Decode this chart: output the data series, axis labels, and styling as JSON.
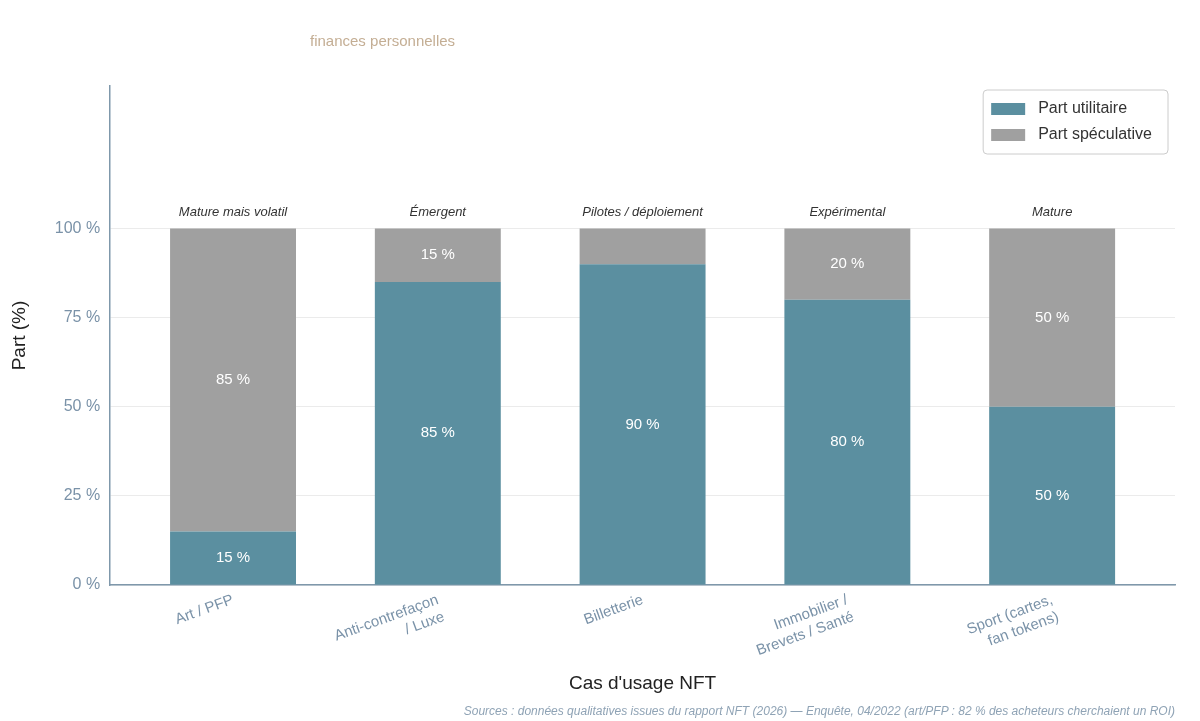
{
  "chart_data": {
    "type": "bar",
    "subtitle": "finances personnelles",
    "xlabel": "Cas d'usage NFT",
    "ylabel": "Part (%)",
    "categories": [
      "Art / PFP",
      "Anti-contrefaçon\n/ Luxe",
      "Billetterie",
      "Immobilier /\nBrevets / Santé",
      "Sport (cartes,\nfan tokens)"
    ],
    "series": [
      {
        "name": "Part utilitaire",
        "color": "#5b8fa0",
        "values": [
          15,
          85,
          90,
          80,
          50
        ],
        "value_labels": [
          "15 %",
          "85 %",
          "90 %",
          "80 %",
          "50 %"
        ]
      },
      {
        "name": "Part spéculative",
        "color": "#a0a0a0",
        "values": [
          85,
          15,
          10,
          20,
          50
        ],
        "value_labels": [
          "85 %",
          "15 %",
          null,
          "20 %",
          "50 %"
        ]
      }
    ],
    "stacked": true,
    "ylim": [
      0,
      140
    ],
    "yticks": [
      {
        "value": 0,
        "label": "0 %"
      },
      {
        "value": 25,
        "label": "25 %"
      },
      {
        "value": 50,
        "label": "50 %"
      },
      {
        "value": 75,
        "label": "75 %"
      },
      {
        "value": 100,
        "label": "100 %"
      }
    ],
    "grid": "y",
    "legend": "top right",
    "annotations": [
      {
        "text": "Mature mais volatil",
        "x": "Art / PFP",
        "y": 100
      },
      {
        "text": "Émergent",
        "x": "Anti-contrefaçon\n/ Luxe",
        "y": 100
      },
      {
        "text": "Pilotes / déploiement",
        "x": "Billetterie",
        "y": 100
      },
      {
        "text": "Expérimental",
        "x": "Immobilier /\nBrevets / Santé",
        "y": 100
      },
      {
        "text": "Mature",
        "x": "Sport (cartes,\nfan tokens)",
        "y": 100
      },
      "Sources : données qualitatives issues du rapport NFT (2026) — Enquête, 04/2022 (art/PFP : 82 % des acheteurs cherchaient un ROI)"
    ]
  }
}
